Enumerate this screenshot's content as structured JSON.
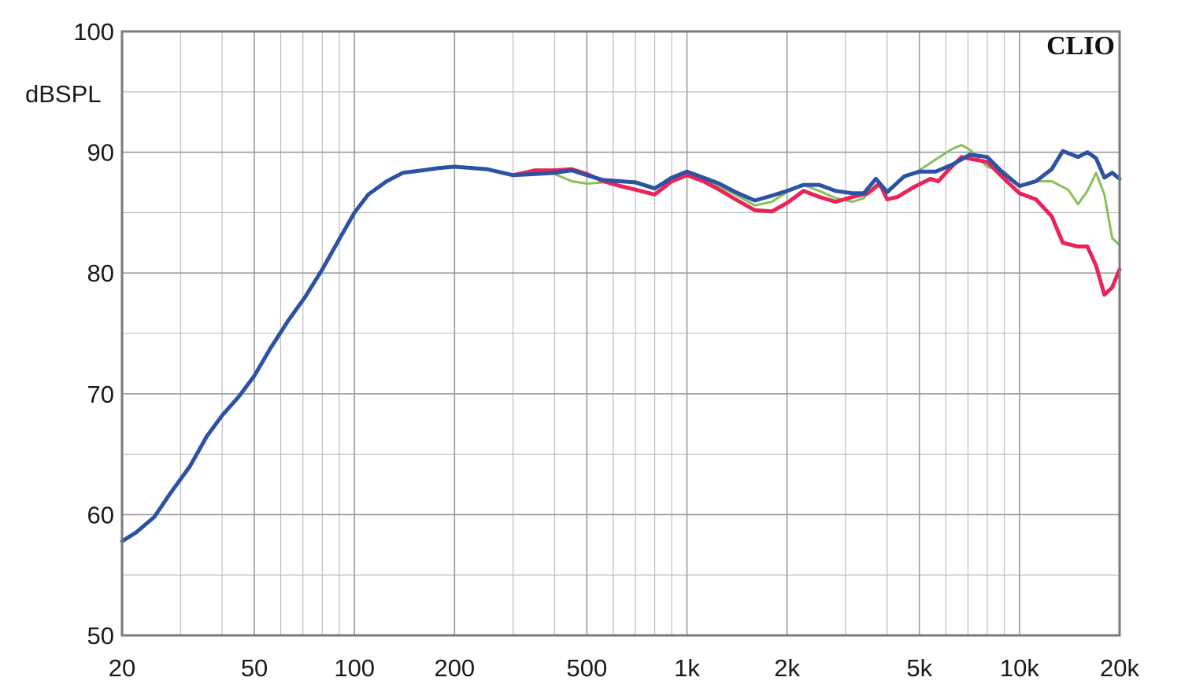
{
  "chart_data": {
    "type": "line",
    "title": "",
    "xlabel": "",
    "ylabel": "dBSPL",
    "watermark": "CLIO",
    "x_scale": "log",
    "xlim": [
      20,
      20000
    ],
    "ylim": [
      50,
      100
    ],
    "grid": true,
    "legend": "none",
    "x_ticks": [
      {
        "value": 20,
        "label": "20"
      },
      {
        "value": 50,
        "label": "50"
      },
      {
        "value": 100,
        "label": "100"
      },
      {
        "value": 200,
        "label": "200"
      },
      {
        "value": 500,
        "label": "500"
      },
      {
        "value": 1000,
        "label": "1k"
      },
      {
        "value": 2000,
        "label": "2k"
      },
      {
        "value": 5000,
        "label": "5k"
      },
      {
        "value": 10000,
        "label": "10k"
      },
      {
        "value": 20000,
        "label": "20k"
      }
    ],
    "y_ticks": [
      {
        "value": 50,
        "label": "50"
      },
      {
        "value": 60,
        "label": "60"
      },
      {
        "value": 70,
        "label": "70"
      },
      {
        "value": 80,
        "label": "80"
      },
      {
        "value": 90,
        "label": "90"
      },
      {
        "value": 100,
        "label": "100"
      }
    ],
    "series": [
      {
        "color": "#88c05a",
        "width": 3,
        "points": [
          [
            20,
            57.8
          ],
          [
            22,
            58.5
          ],
          [
            25,
            59.8
          ],
          [
            28,
            61.8
          ],
          [
            32,
            64
          ],
          [
            36,
            66.5
          ],
          [
            40,
            68.2
          ],
          [
            45,
            69.8
          ],
          [
            50,
            71.5
          ],
          [
            56,
            73.8
          ],
          [
            63,
            76
          ],
          [
            71,
            78
          ],
          [
            80,
            80.3
          ],
          [
            90,
            82.8
          ],
          [
            100,
            85
          ],
          [
            110,
            86.5
          ],
          [
            125,
            87.6
          ],
          [
            140,
            88.3
          ],
          [
            160,
            88.5
          ],
          [
            180,
            88.7
          ],
          [
            200,
            88.8
          ],
          [
            250,
            88.6
          ],
          [
            300,
            88.1
          ],
          [
            350,
            88.3
          ],
          [
            400,
            88.2
          ],
          [
            450,
            87.6
          ],
          [
            500,
            87.4
          ],
          [
            560,
            87.5
          ],
          [
            630,
            87.6
          ],
          [
            700,
            87.6
          ],
          [
            800,
            87.1
          ],
          [
            900,
            87.8
          ],
          [
            1000,
            88.2
          ],
          [
            1120,
            87.8
          ],
          [
            1250,
            87.2
          ],
          [
            1400,
            86.5
          ],
          [
            1600,
            85.6
          ],
          [
            1800,
            85.9
          ],
          [
            2000,
            86.7
          ],
          [
            2240,
            87.3
          ],
          [
            2500,
            86.8
          ],
          [
            2800,
            86.2
          ],
          [
            3150,
            85.9
          ],
          [
            3400,
            86.2
          ],
          [
            3700,
            87.3
          ],
          [
            4000,
            86.8
          ],
          [
            4500,
            87.9
          ],
          [
            5000,
            88.5
          ],
          [
            5600,
            89.4
          ],
          [
            6300,
            90.3
          ],
          [
            6700,
            90.6
          ],
          [
            7100,
            90.2
          ],
          [
            8000,
            88.8
          ],
          [
            9000,
            88.4
          ],
          [
            10000,
            87.2
          ],
          [
            11200,
            87.6
          ],
          [
            12500,
            87.6
          ],
          [
            14000,
            86.9
          ],
          [
            15000,
            85.7
          ],
          [
            16000,
            86.8
          ],
          [
            17000,
            88.3
          ],
          [
            18000,
            86.5
          ],
          [
            19000,
            82.9
          ],
          [
            20000,
            82.3
          ]
        ]
      },
      {
        "color": "#e8245a",
        "width": 5,
        "points": [
          [
            300,
            88.1
          ],
          [
            350,
            88.5
          ],
          [
            400,
            88.5
          ],
          [
            450,
            88.6
          ],
          [
            500,
            88.2
          ],
          [
            560,
            87.6
          ],
          [
            630,
            87.2
          ],
          [
            700,
            86.9
          ],
          [
            800,
            86.5
          ],
          [
            900,
            87.6
          ],
          [
            1000,
            88.1
          ],
          [
            1120,
            87.6
          ],
          [
            1250,
            86.9
          ],
          [
            1400,
            86.1
          ],
          [
            1600,
            85.2
          ],
          [
            1800,
            85.1
          ],
          [
            2000,
            85.8
          ],
          [
            2240,
            86.8
          ],
          [
            2500,
            86.3
          ],
          [
            2800,
            85.9
          ],
          [
            3150,
            86.3
          ],
          [
            3500,
            86.6
          ],
          [
            3800,
            87.4
          ],
          [
            4000,
            86.1
          ],
          [
            4300,
            86.3
          ],
          [
            4800,
            87.1
          ],
          [
            5400,
            87.8
          ],
          [
            5700,
            87.6
          ],
          [
            6100,
            88.5
          ],
          [
            6700,
            89.6
          ],
          [
            7300,
            89.4
          ],
          [
            8000,
            89.2
          ],
          [
            9000,
            87.8
          ],
          [
            10000,
            86.6
          ],
          [
            11200,
            86.1
          ],
          [
            12500,
            84.7
          ],
          [
            13500,
            82.5
          ],
          [
            15000,
            82.2
          ],
          [
            16000,
            82.2
          ],
          [
            17000,
            80.6
          ],
          [
            18000,
            78.2
          ],
          [
            19000,
            78.8
          ],
          [
            20000,
            80.3
          ]
        ]
      },
      {
        "color": "#2c52a4",
        "width": 5,
        "points": [
          [
            20,
            57.8
          ],
          [
            22,
            58.5
          ],
          [
            25,
            59.8
          ],
          [
            28,
            61.8
          ],
          [
            32,
            64
          ],
          [
            36,
            66.5
          ],
          [
            40,
            68.2
          ],
          [
            45,
            69.8
          ],
          [
            50,
            71.5
          ],
          [
            56,
            73.8
          ],
          [
            63,
            76
          ],
          [
            71,
            78
          ],
          [
            80,
            80.3
          ],
          [
            90,
            82.8
          ],
          [
            100,
            85
          ],
          [
            110,
            86.5
          ],
          [
            125,
            87.6
          ],
          [
            140,
            88.3
          ],
          [
            160,
            88.5
          ],
          [
            180,
            88.7
          ],
          [
            200,
            88.8
          ],
          [
            250,
            88.6
          ],
          [
            300,
            88.1
          ],
          [
            350,
            88.2
          ],
          [
            400,
            88.3
          ],
          [
            450,
            88.5
          ],
          [
            500,
            88.1
          ],
          [
            560,
            87.7
          ],
          [
            630,
            87.6
          ],
          [
            700,
            87.5
          ],
          [
            800,
            87.0
          ],
          [
            900,
            87.9
          ],
          [
            1000,
            88.4
          ],
          [
            1120,
            87.9
          ],
          [
            1250,
            87.4
          ],
          [
            1400,
            86.7
          ],
          [
            1600,
            86.0
          ],
          [
            1800,
            86.4
          ],
          [
            2000,
            86.8
          ],
          [
            2240,
            87.3
          ],
          [
            2500,
            87.3
          ],
          [
            2800,
            86.8
          ],
          [
            3150,
            86.6
          ],
          [
            3400,
            86.6
          ],
          [
            3700,
            87.8
          ],
          [
            4000,
            86.7
          ],
          [
            4500,
            88.0
          ],
          [
            5000,
            88.4
          ],
          [
            5600,
            88.4
          ],
          [
            6300,
            89.0
          ],
          [
            7100,
            89.8
          ],
          [
            8000,
            89.6
          ],
          [
            9000,
            88.2
          ],
          [
            10000,
            87.2
          ],
          [
            11200,
            87.6
          ],
          [
            12500,
            88.6
          ],
          [
            13500,
            90.1
          ],
          [
            15000,
            89.6
          ],
          [
            16000,
            90.0
          ],
          [
            17000,
            89.5
          ],
          [
            18000,
            87.9
          ],
          [
            19000,
            88.3
          ],
          [
            20000,
            87.8
          ]
        ]
      }
    ]
  }
}
